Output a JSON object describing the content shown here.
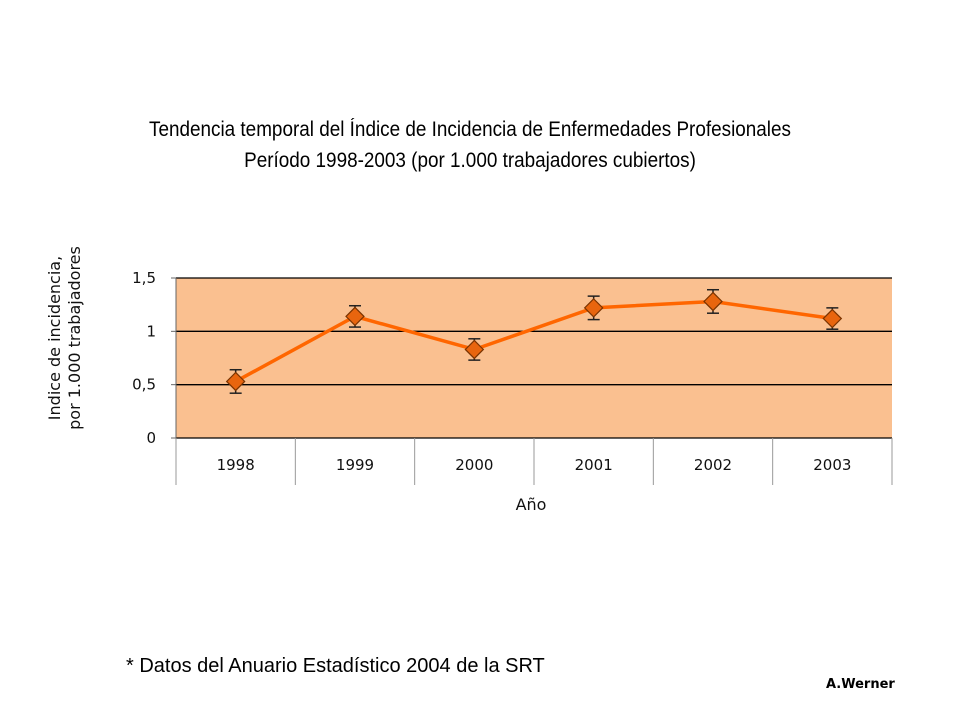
{
  "chart_data": {
    "type": "line",
    "title": "Tendencia temporal del Índice de Incidencia de Enfermedades Profesionales",
    "subtitle": "Período 1998-2003 (por 1.000 trabajadores cubiertos)",
    "xlabel": "Año",
    "ylabel": [
      "Indice de incidencia,",
      "por 1.000 trabajadores"
    ],
    "categories": [
      "1998",
      "1999",
      "2000",
      "2001",
      "2002",
      "2003"
    ],
    "values": [
      0.53,
      1.14,
      0.83,
      1.22,
      1.28,
      1.12
    ],
    "error_bars": [
      0.11,
      0.1,
      0.1,
      0.11,
      0.11,
      0.1
    ],
    "ylim": [
      0,
      1.5
    ],
    "yticks": [
      0,
      0.5,
      1,
      1.5
    ],
    "ytick_labels": [
      "0",
      "0,5",
      "1",
      "1,5"
    ],
    "grid": true,
    "colors": {
      "plot_background": "#FAC090",
      "line": "#FF6600",
      "marker": "#E8650E",
      "gridline": "#000000"
    }
  },
  "footnote": "* Datos del Anuario Estadístico 2004 de la SRT",
  "credit": "A.Werner"
}
